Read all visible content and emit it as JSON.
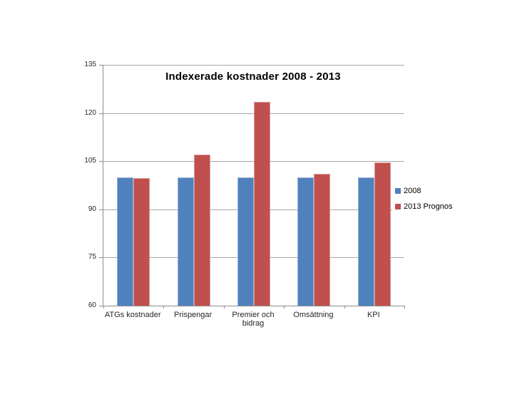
{
  "page": {
    "background": "#ffffff"
  },
  "chart_data": {
    "type": "bar",
    "title": "Indexerade kostnader 2008 - 2013",
    "categories": [
      "ATGs kostnader",
      "Prispengar",
      "Premier och bidrag",
      "Omsättning",
      "KPI"
    ],
    "series": [
      {
        "name": "2008",
        "color": "#4F81BD",
        "border_color": "#95B3D7",
        "values": [
          100,
          100,
          100,
          100,
          100
        ]
      },
      {
        "name": "2013 Prognos",
        "color": "#C0504D",
        "border_color": "#D99694",
        "values": [
          99.7,
          107,
          123.5,
          101,
          104.5
        ]
      }
    ],
    "xlabel": "",
    "ylabel": "",
    "ylim": [
      60,
      135
    ],
    "yticks": [
      60,
      75,
      90,
      105,
      120,
      135
    ],
    "grid": true,
    "legend_position": "right",
    "gridline_color": "#A6A6A6",
    "axis_color": "#8C8C8C",
    "title_color": "#000000",
    "tick_label_color": "#262626"
  }
}
